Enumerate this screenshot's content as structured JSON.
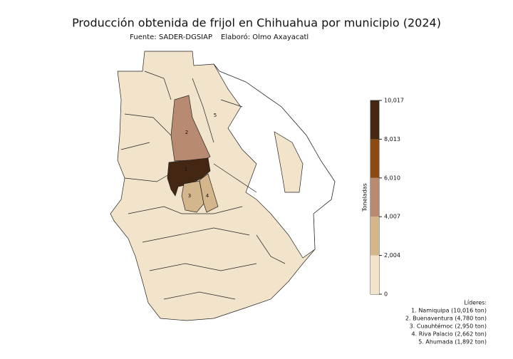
{
  "title": "Producción obtenida de frijol en Chihuahua por municipio (2024)",
  "subtitle": {
    "source": "Fuente: SADER-DGSIAP",
    "author": "Elaboró: Olmo Axayacatl"
  },
  "colorbar": {
    "label": "Toneladas",
    "lim": [
      0,
      10017
    ],
    "ticks": [
      0,
      {
        "value": 2004,
        "label": "2,004"
      },
      {
        "value": 4007,
        "label": "4,007"
      },
      {
        "value": 6010,
        "label": "6,010"
      },
      {
        "value": 8013,
        "label": "8,013"
      },
      {
        "value": 10017,
        "label": "10,017"
      }
    ],
    "colors": [
      "#f2e3cb",
      "#d3b68c",
      "#b98a72",
      "#8b4a12",
      "#432712"
    ]
  },
  "map_labels": [
    "1",
    "2",
    "3",
    "4",
    "5"
  ],
  "leaders": {
    "title": "Líderes:",
    "items": [
      "1. Namiquipa (10,016 ton)",
      "2. Buenaventura (4,780 ton)",
      "3. Cuauhtémoc (2,950 ton)",
      "4. Riva Palacio (2,662 ton)",
      "5. Ahumada (1,892 ton)"
    ]
  }
}
